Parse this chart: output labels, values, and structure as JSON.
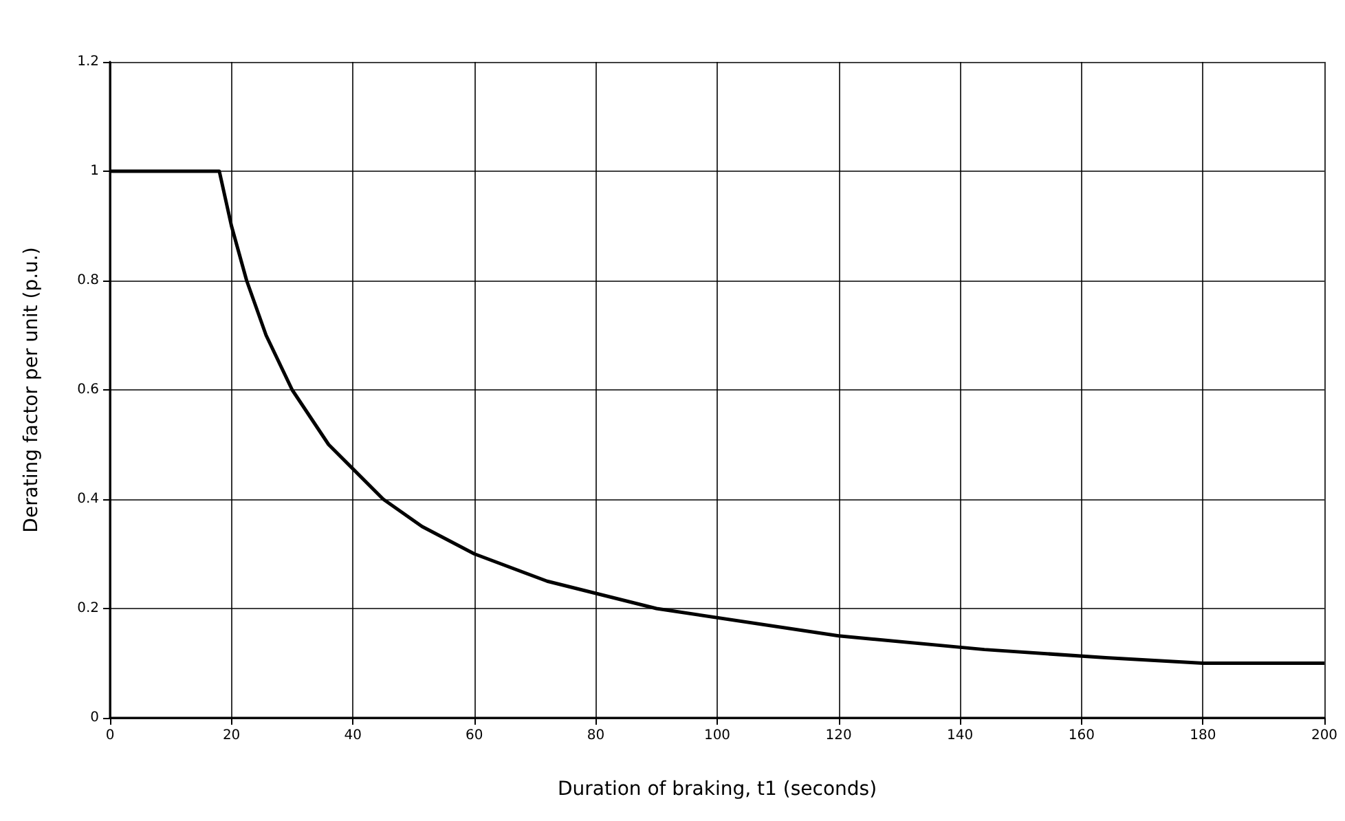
{
  "chart_data": {
    "type": "line",
    "xlabel": "Duration of braking, t1 (seconds)",
    "ylabel": "Derating factor per unit (p.u.)",
    "x": [
      0,
      18,
      20,
      22.5,
      25.7,
      30,
      36,
      45,
      51.4,
      60,
      72,
      90,
      120,
      144,
      164,
      180,
      200
    ],
    "series": [
      {
        "color": "#000000",
        "values": [
          1,
          1,
          0.9,
          0.8,
          0.7,
          0.6,
          0.5,
          0.4,
          0.35,
          0.3,
          0.25,
          0.2,
          0.15,
          0.125,
          0.11,
          0.1,
          0.1
        ]
      }
    ],
    "xlim": [
      0,
      200
    ],
    "xticks": [
      0,
      20,
      40,
      60,
      80,
      100,
      120,
      140,
      160,
      180,
      200
    ],
    "ylim": [
      0,
      1.2
    ],
    "yticks": [
      0,
      0.2,
      0.4,
      0.6,
      0.8,
      1,
      1.2
    ],
    "grid": true,
    "marker": "none",
    "line_style": "solid"
  }
}
